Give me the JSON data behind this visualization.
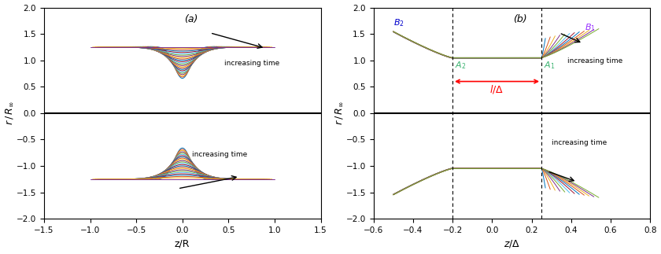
{
  "panel_a": {
    "xlim": [
      -1.5,
      1.5
    ],
    "ylim": [
      -2,
      2
    ],
    "xlabel": "z/R",
    "label": "(a)",
    "n_profiles": 25,
    "xticks": [
      -1.5,
      -1,
      -0.5,
      0,
      0.5,
      1,
      1.5
    ],
    "yticks": [
      -2,
      -1.5,
      -1,
      -0.5,
      0,
      0.5,
      1,
      1.5,
      2
    ]
  },
  "panel_b": {
    "xlim": [
      -0.6,
      0.8
    ],
    "ylim": [
      -2,
      2
    ],
    "xlabel": "z/Δ",
    "label": "(b)",
    "n_profiles": 12,
    "vline1": -0.2,
    "vline2": 0.25,
    "xticks": [
      -0.6,
      -0.4,
      -0.2,
      0,
      0.2,
      0.4,
      0.6,
      0.8
    ],
    "yticks": [
      -2,
      -1.5,
      -1,
      -0.5,
      0,
      0.5,
      1,
      1.5,
      2
    ]
  },
  "colors_matlab": [
    "#0072BD",
    "#D95319",
    "#EDB120",
    "#7E2F8E",
    "#77AC30",
    "#4DBEEE",
    "#A2142F"
  ],
  "lw": 0.7,
  "bg_color": "white",
  "ylabel": "r / R_inf"
}
